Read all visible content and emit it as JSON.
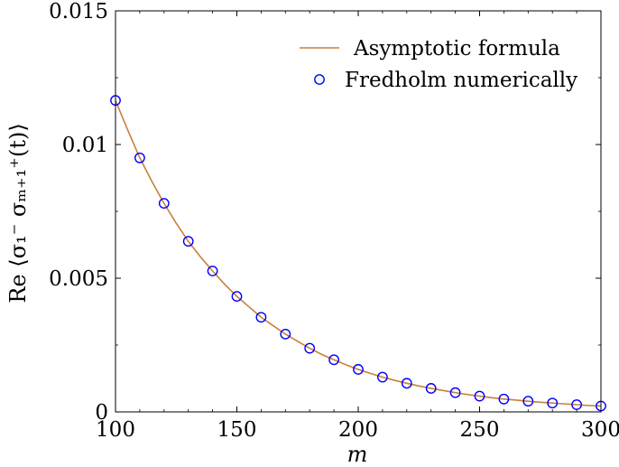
{
  "chart_data": {
    "type": "line",
    "title": "",
    "xlabel": "m",
    "ylabel": "Re ⟨σ₁⁻ σₘ₊₁⁺(t)⟩",
    "xlim": [
      100,
      300
    ],
    "ylim": [
      0,
      0.015
    ],
    "xticks": [
      100,
      150,
      200,
      250,
      300
    ],
    "xtick_labels": [
      "100",
      "150",
      "200",
      "250",
      "300"
    ],
    "yticks": [
      0,
      0.005,
      0.01,
      0.015
    ],
    "ytick_labels": [
      "0",
      "0.005",
      "0.01",
      "0.015"
    ],
    "grid": false,
    "legend_position": "top-right",
    "series": [
      {
        "name": "Asymptotic formula",
        "kind": "line",
        "color": "#c8803c",
        "x": [
          100,
          105,
          110,
          115,
          120,
          125,
          130,
          135,
          140,
          145,
          150,
          155,
          160,
          165,
          170,
          175,
          180,
          185,
          190,
          195,
          200,
          205,
          210,
          215,
          220,
          225,
          230,
          235,
          240,
          245,
          250,
          255,
          260,
          265,
          270,
          275,
          280,
          285,
          290,
          295,
          300
        ],
        "y": [
          0.01165,
          0.01055,
          0.0095,
          0.00862,
          0.0078,
          0.00706,
          0.00638,
          0.0058,
          0.00527,
          0.00477,
          0.00432,
          0.00393,
          0.00354,
          0.00322,
          0.00291,
          0.00264,
          0.00238,
          0.00215,
          0.00195,
          0.00176,
          0.00159,
          0.00144,
          0.0013,
          0.00118,
          0.00107,
          0.00097,
          0.00088,
          0.0008,
          0.00072,
          0.00065,
          0.00059,
          0.00053,
          0.00048,
          0.00044,
          0.0004,
          0.00036,
          0.00033,
          0.0003,
          0.00027,
          0.00024,
          0.00022
        ]
      },
      {
        "name": "Fredholm numerically",
        "kind": "scatter",
        "marker": "open-circle",
        "color": "#0000ff",
        "x": [
          100,
          110,
          120,
          130,
          140,
          150,
          160,
          170,
          180,
          190,
          200,
          210,
          220,
          230,
          240,
          250,
          260,
          270,
          280,
          290,
          300
        ],
        "y": [
          0.01165,
          0.0095,
          0.0078,
          0.00638,
          0.00527,
          0.00432,
          0.00354,
          0.00291,
          0.00238,
          0.00195,
          0.00159,
          0.0013,
          0.00107,
          0.00088,
          0.00072,
          0.00059,
          0.00048,
          0.0004,
          0.00033,
          0.00027,
          0.00022
        ]
      }
    ]
  }
}
